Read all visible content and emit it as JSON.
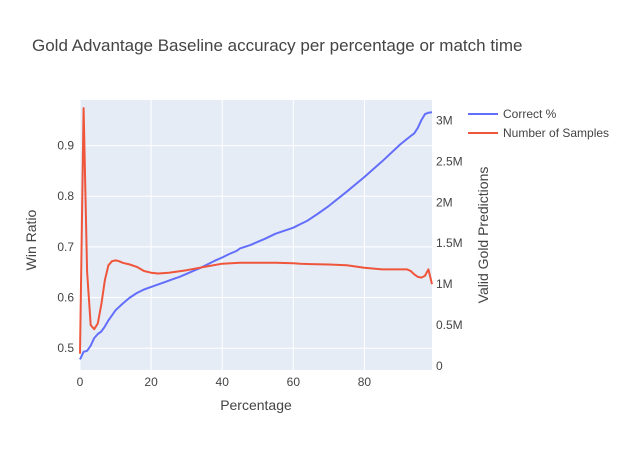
{
  "chart_data": {
    "type": "line",
    "title": "Gold Advantage Baseline accuracy per percentage or match time",
    "xlabel": "Percentage",
    "ylabel": "Win Ratio",
    "y2label": "Valid Gold Predictions",
    "xlim": [
      0,
      99
    ],
    "ylim": [
      0.457,
      0.99
    ],
    "y2lim": [
      0,
      3200000.0
    ],
    "x_ticks": [
      0,
      20,
      40,
      60,
      80
    ],
    "x_tick_labels": [
      "0",
      "20",
      "40",
      "60",
      "80"
    ],
    "y_ticks": [
      0.5,
      0.6,
      0.7,
      0.8,
      0.9
    ],
    "y_tick_labels": [
      "0.5",
      "0.6",
      "0.7",
      "0.8",
      "0.9"
    ],
    "y2_ticks": [
      0,
      500000,
      1000000,
      1500000,
      2000000,
      2500000,
      3000000
    ],
    "y2_tick_labels": [
      "0",
      "0.5M",
      "1M",
      "1.5M",
      "2M",
      "2.5M",
      "3M"
    ],
    "grid": true,
    "legend_position": "top-right",
    "colors": {
      "plot_bg": "#e5ecf6",
      "grid": "#ffffff",
      "correct": "#636efa",
      "samples": "#ef553b"
    },
    "series": [
      {
        "name": "Correct %",
        "axis": "y",
        "x": [
          0,
          1,
          2,
          3,
          4,
          5,
          6,
          7,
          8,
          9,
          10,
          12,
          14,
          16,
          18,
          20,
          22,
          24,
          26,
          28,
          30,
          32,
          34,
          36,
          38,
          40,
          42,
          44,
          45,
          48,
          50,
          52,
          55,
          60,
          62,
          64,
          67,
          70,
          75,
          80,
          85,
          90,
          93,
          94,
          95,
          96,
          97,
          98,
          99
        ],
        "y": [
          0.478,
          0.493,
          0.495,
          0.505,
          0.52,
          0.528,
          0.533,
          0.543,
          0.555,
          0.565,
          0.575,
          0.588,
          0.6,
          0.609,
          0.616,
          0.621,
          0.626,
          0.631,
          0.636,
          0.641,
          0.647,
          0.653,
          0.659,
          0.666,
          0.673,
          0.679,
          0.686,
          0.692,
          0.697,
          0.704,
          0.71,
          0.716,
          0.726,
          0.738,
          0.745,
          0.752,
          0.766,
          0.781,
          0.809,
          0.838,
          0.869,
          0.902,
          0.919,
          0.924,
          0.935,
          0.95,
          0.962,
          0.965,
          0.966
        ]
      },
      {
        "name": "Number of Samples",
        "axis": "y2",
        "x": [
          0,
          1,
          2,
          3,
          4,
          5,
          6,
          7,
          8,
          9,
          10,
          11,
          12,
          14,
          16,
          18,
          20,
          22,
          25,
          30,
          35,
          40,
          45,
          50,
          55,
          60,
          62,
          65,
          70,
          75,
          80,
          85,
          88,
          92,
          93,
          94,
          95,
          96,
          97,
          98,
          99
        ],
        "y": [
          150000,
          3150000,
          1150000,
          500000,
          450000,
          520000,
          750000,
          1050000,
          1230000,
          1280000,
          1290000,
          1280000,
          1260000,
          1240000,
          1210000,
          1160000,
          1140000,
          1130000,
          1140000,
          1170000,
          1210000,
          1250000,
          1260000,
          1260000,
          1260000,
          1255000,
          1250000,
          1245000,
          1240000,
          1230000,
          1200000,
          1180000,
          1180000,
          1180000,
          1160000,
          1120000,
          1090000,
          1080000,
          1100000,
          1180000,
          1000000
        ]
      }
    ]
  }
}
